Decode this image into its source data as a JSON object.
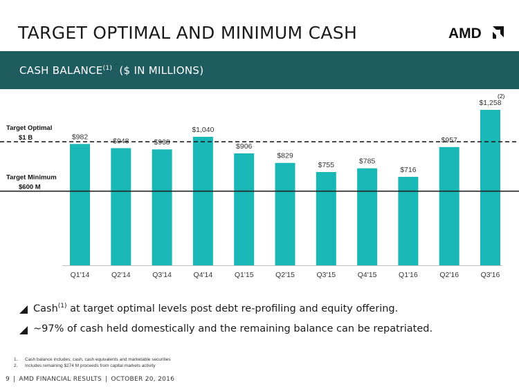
{
  "title": "TARGET OPTIMAL AND MINIMUM CASH",
  "logo_text": "AMD",
  "banner": {
    "label": "CASH BALANCE",
    "superscript": "(1)",
    "unit": "($ IN MILLIONS)"
  },
  "chart_data": {
    "type": "bar",
    "categories": [
      "Q1'14",
      "Q2'14",
      "Q3'14",
      "Q4'14",
      "Q1'15",
      "Q2'15",
      "Q3'15",
      "Q4'15",
      "Q1'16",
      "Q2'16",
      "Q3'16"
    ],
    "values": [
      982,
      948,
      938,
      1040,
      906,
      829,
      755,
      785,
      716,
      957,
      1258
    ],
    "data_labels": [
      "$982",
      "$948",
      "$938",
      "$1,040",
      "$906",
      "$829",
      "$755",
      "$785",
      "$716",
      "$957",
      "$1,258"
    ],
    "last_bar_note": "(2)",
    "ylim": [
      0,
      1258
    ],
    "color": "#1ab7b7",
    "reference_lines": [
      {
        "name": "Target Optimal",
        "value_label": "$1 B",
        "value": 1000,
        "style": "dashed"
      },
      {
        "name": "Target Minimum",
        "value_label": "$600 M",
        "value": 600,
        "style": "solid"
      }
    ],
    "grid": false,
    "legend": "none"
  },
  "bullets": [
    {
      "pre": "Cash",
      "sup": "(1)",
      "post": " at target optimal levels post debt re-profiling and equity offering."
    },
    {
      "pre": "~97% of cash held domestically and the remaining balance can be repatriated.",
      "sup": "",
      "post": ""
    }
  ],
  "footnotes": [
    {
      "num": "1.",
      "text": "Cash balance includes: cash, cash equivalents and marketable securities"
    },
    {
      "num": "2.",
      "text": "Includes remaining $274 M proceeds from capital markets activity"
    }
  ],
  "footer": {
    "page": "9",
    "text": "AMD FINANCIAL RESULTS",
    "date": "OCTOBER 20, 2016"
  }
}
